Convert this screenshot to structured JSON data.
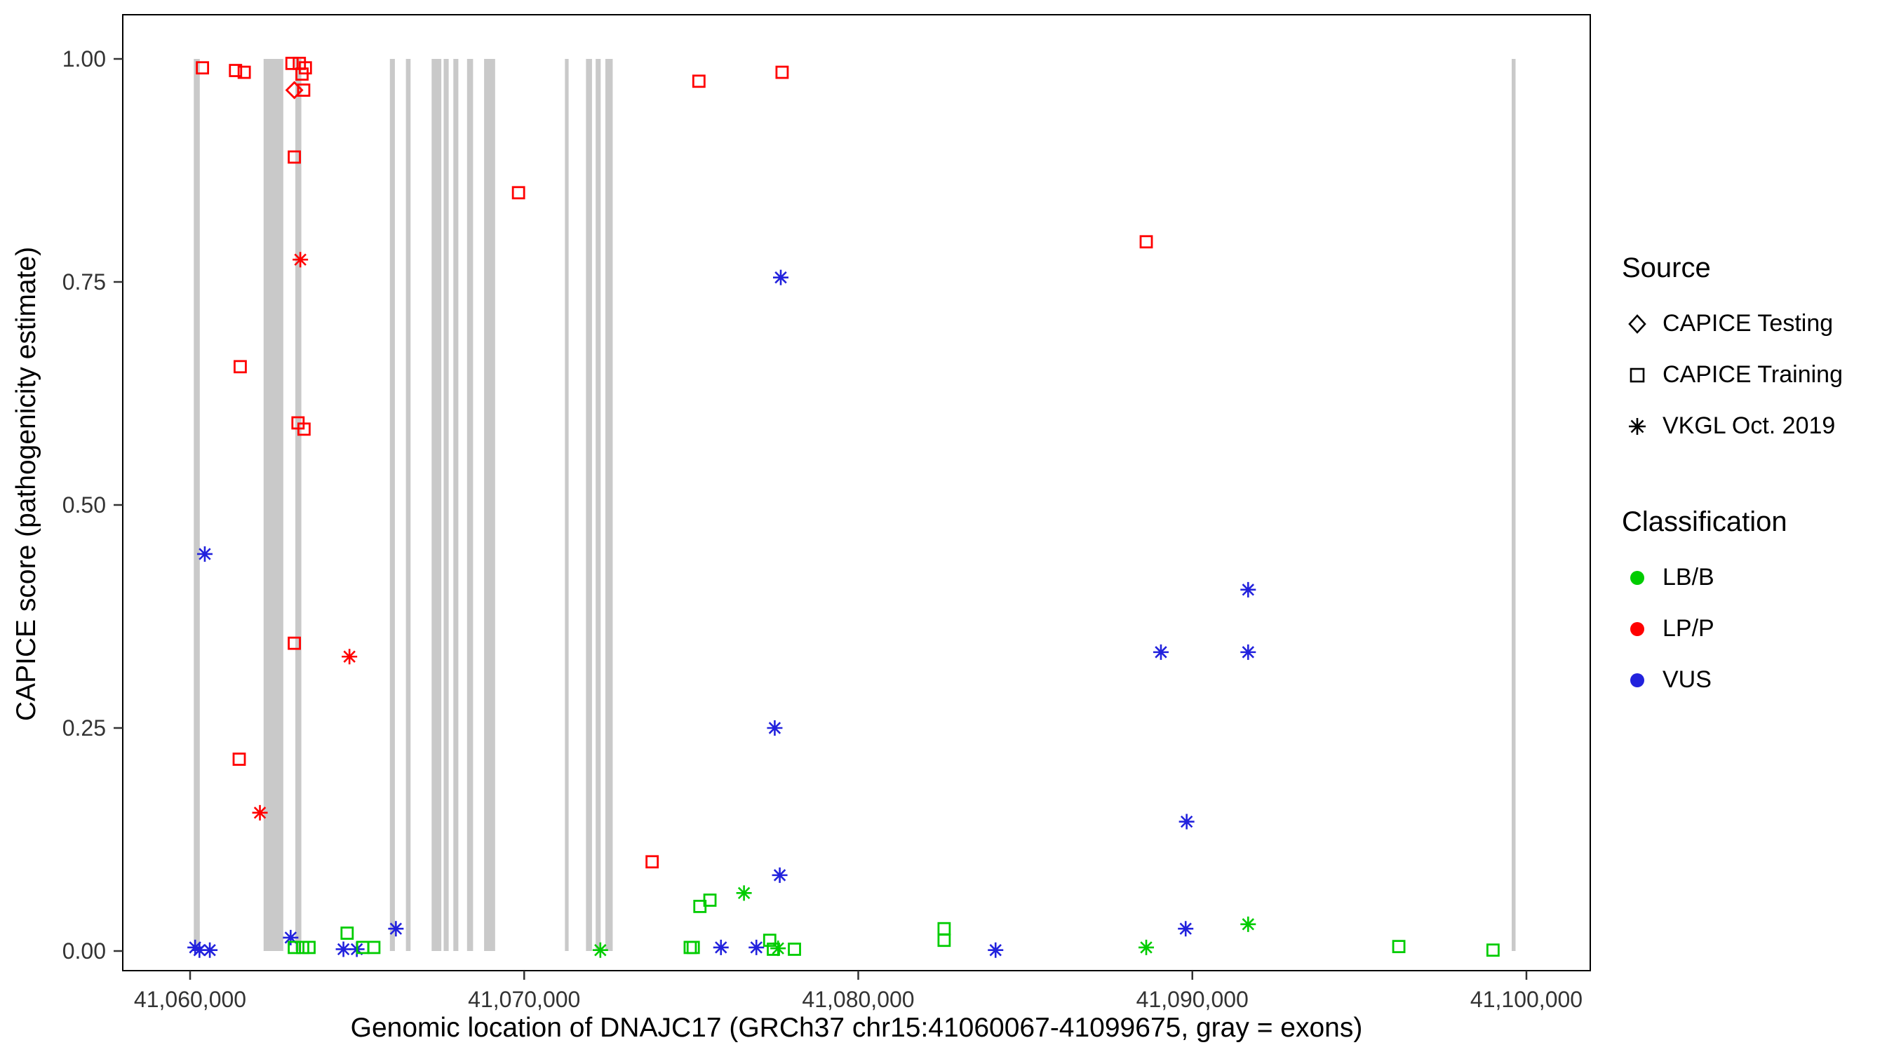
{
  "figure": {
    "background": "#FFFFFF"
  },
  "axes": {
    "x_title": "Genomic location of DNAJC17 (GRCh37 chr15:41060067-41099675, gray = exons)",
    "y_title": "CAPICE score (pathogenicity estimate)"
  },
  "legend": {
    "source": {
      "title": "Source",
      "items": [
        {
          "label": "CAPICE Testing",
          "shape": "diamond"
        },
        {
          "label": "CAPICE Training",
          "shape": "square"
        },
        {
          "label": "VKGL Oct. 2019",
          "shape": "asterisk"
        }
      ]
    },
    "classification": {
      "title": "Classification",
      "items": [
        {
          "label": "LB/B",
          "class": "LB/B"
        },
        {
          "label": "LP/P",
          "class": "LP/P"
        },
        {
          "label": "VUS",
          "class": "VUS"
        }
      ]
    }
  },
  "chart_data": {
    "type": "scatter",
    "title": "",
    "xlabel": "Genomic location of DNAJC17 (GRCh37 chr15:41060067-41099675, gray = exons)",
    "ylabel": "CAPICE score (pathogenicity estimate)",
    "x_axis": {
      "tick_range": [
        41060000,
        41100000
      ],
      "ticks": [
        {
          "value": 41060000,
          "label": "41,060,000"
        },
        {
          "value": 41070000,
          "label": "41,070,000"
        },
        {
          "value": 41080000,
          "label": "41,080,000"
        },
        {
          "value": 41090000,
          "label": "41,090,000"
        },
        {
          "value": 41100000,
          "label": "41,100,000"
        }
      ]
    },
    "y_axis": {
      "range": [
        0,
        1
      ],
      "ticks": [
        {
          "value": 0.0,
          "label": "0.00"
        },
        {
          "value": 0.25,
          "label": "0.25"
        },
        {
          "value": 0.5,
          "label": "0.50"
        },
        {
          "value": 0.75,
          "label": "0.75"
        },
        {
          "value": 1.0,
          "label": "1.00"
        }
      ]
    },
    "exon_color": "#C9C9C9",
    "exons": [
      [
        41060110,
        41060290
      ],
      [
        41062200,
        41062790
      ],
      [
        41063150,
        41063330
      ],
      [
        41065980,
        41066130
      ],
      [
        41066460,
        41066600
      ],
      [
        41067230,
        41067520
      ],
      [
        41067590,
        41067740
      ],
      [
        41067880,
        41068030
      ],
      [
        41068290,
        41068470
      ],
      [
        41068800,
        41069130
      ],
      [
        41071220,
        41071330
      ],
      [
        41071850,
        41072030
      ],
      [
        41072140,
        41072290
      ],
      [
        41072430,
        41072650
      ],
      [
        41099560,
        41099675
      ]
    ],
    "source_shapes": {
      "testing": "diamond",
      "training": "square",
      "vkgl": "asterisk"
    },
    "class_colors": {
      "LB/B": "#00CC00",
      "LP/P": "#FF0000",
      "VUS": "#2222DD"
    },
    "points": [
      [
        41060370,
        0.99,
        "training",
        "LP/P"
      ],
      [
        41061360,
        0.987,
        "training",
        "LP/P"
      ],
      [
        41061620,
        0.985,
        "training",
        "LP/P"
      ],
      [
        41063050,
        0.995,
        "training",
        "LP/P"
      ],
      [
        41063270,
        0.995,
        "training",
        "LP/P"
      ],
      [
        41063450,
        0.99,
        "training",
        "LP/P"
      ],
      [
        41063350,
        0.983,
        "training",
        "LP/P"
      ],
      [
        41063400,
        0.965,
        "training",
        "LP/P"
      ],
      [
        41063120,
        0.965,
        "testing",
        "LP/P"
      ],
      [
        41063120,
        0.89,
        "training",
        "LP/P"
      ],
      [
        41061500,
        0.655,
        "training",
        "LP/P"
      ],
      [
        41063230,
        0.592,
        "training",
        "LP/P"
      ],
      [
        41063410,
        0.585,
        "training",
        "LP/P"
      ],
      [
        41063120,
        0.345,
        "training",
        "LP/P"
      ],
      [
        41061470,
        0.215,
        "training",
        "LP/P"
      ],
      [
        41069830,
        0.85,
        "training",
        "LP/P"
      ],
      [
        41075230,
        0.975,
        "training",
        "LP/P"
      ],
      [
        41077720,
        0.985,
        "training",
        "LP/P"
      ],
      [
        41088620,
        0.795,
        "training",
        "LP/P"
      ],
      [
        41073830,
        0.1,
        "training",
        "LP/P"
      ],
      [
        41063300,
        0.775,
        "vkgl",
        "LP/P"
      ],
      [
        41064770,
        0.33,
        "vkgl",
        "LP/P"
      ],
      [
        41062090,
        0.155,
        "vkgl",
        "LP/P"
      ],
      [
        41060440,
        0.445,
        "vkgl",
        "VUS"
      ],
      [
        41077680,
        0.755,
        "vkgl",
        "VUS"
      ],
      [
        41077500,
        0.25,
        "vkgl",
        "VUS"
      ],
      [
        41077650,
        0.085,
        "vkgl",
        "VUS"
      ],
      [
        41091670,
        0.405,
        "vkgl",
        "VUS"
      ],
      [
        41089060,
        0.335,
        "vkgl",
        "VUS"
      ],
      [
        41091670,
        0.335,
        "vkgl",
        "VUS"
      ],
      [
        41089830,
        0.145,
        "vkgl",
        "VUS"
      ],
      [
        41089800,
        0.025,
        "vkgl",
        "VUS"
      ],
      [
        41063010,
        0.015,
        "vkgl",
        "VUS"
      ],
      [
        41066160,
        0.025,
        "vkgl",
        "VUS"
      ],
      [
        41060150,
        0.004,
        "vkgl",
        "VUS"
      ],
      [
        41060280,
        0.001,
        "vkgl",
        "VUS"
      ],
      [
        41060590,
        0.001,
        "vkgl",
        "VUS"
      ],
      [
        41064590,
        0.002,
        "vkgl",
        "VUS"
      ],
      [
        41064990,
        0.002,
        "vkgl",
        "VUS"
      ],
      [
        41075890,
        0.004,
        "vkgl",
        "VUS"
      ],
      [
        41076950,
        0.004,
        "vkgl",
        "VUS"
      ],
      [
        41084110,
        0.001,
        "vkgl",
        "VUS"
      ],
      [
        41064700,
        0.02,
        "training",
        "LB/B"
      ],
      [
        41063120,
        0.004,
        "training",
        "LB/B"
      ],
      [
        41063370,
        0.004,
        "training",
        "LB/B"
      ],
      [
        41063560,
        0.004,
        "training",
        "LB/B"
      ],
      [
        41065170,
        0.004,
        "training",
        "LB/B"
      ],
      [
        41065500,
        0.004,
        "training",
        "LB/B"
      ],
      [
        41074970,
        0.004,
        "training",
        "LB/B"
      ],
      [
        41075060,
        0.004,
        "training",
        "LB/B"
      ],
      [
        41075260,
        0.05,
        "training",
        "LB/B"
      ],
      [
        41075560,
        0.057,
        "training",
        "LB/B"
      ],
      [
        41077350,
        0.012,
        "training",
        "LB/B"
      ],
      [
        41077460,
        0.002,
        "training",
        "LB/B"
      ],
      [
        41078090,
        0.002,
        "training",
        "LB/B"
      ],
      [
        41082570,
        0.025,
        "training",
        "LB/B"
      ],
      [
        41082570,
        0.012,
        "training",
        "LB/B"
      ],
      [
        41096180,
        0.005,
        "training",
        "LB/B"
      ],
      [
        41099000,
        0.001,
        "training",
        "LB/B"
      ],
      [
        41076580,
        0.065,
        "vkgl",
        "LB/B"
      ],
      [
        41091670,
        0.03,
        "vkgl",
        "LB/B"
      ],
      [
        41088620,
        0.004,
        "vkgl",
        "LB/B"
      ],
      [
        41072280,
        0.001,
        "vkgl",
        "LB/B"
      ],
      [
        41077600,
        0.003,
        "vkgl",
        "LB/B"
      ]
    ]
  }
}
